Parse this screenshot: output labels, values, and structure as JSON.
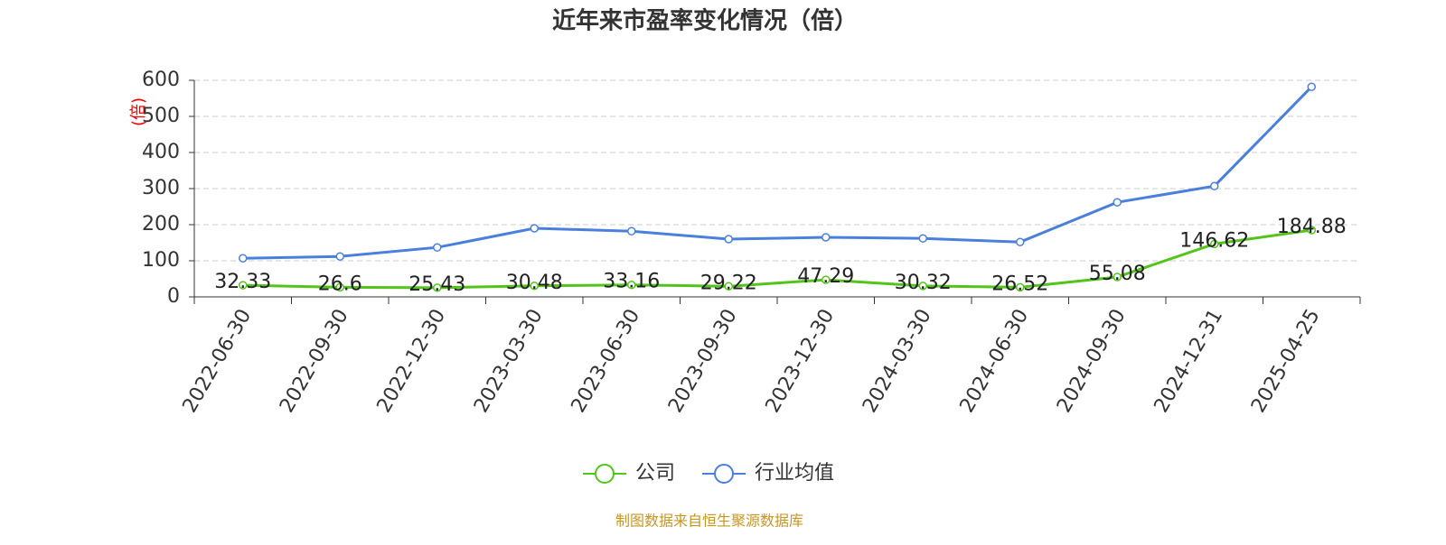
{
  "chart_data": {
    "type": "line",
    "title": "近年来市盈率变化情况（倍）",
    "y_label": "(倍)",
    "source": "制图数据来自恒生聚源数据库",
    "categories": [
      "2022-06-30",
      "2022-09-30",
      "2022-12-30",
      "2023-03-30",
      "2023-06-30",
      "2023-09-30",
      "2023-12-30",
      "2024-03-30",
      "2024-06-30",
      "2024-09-30",
      "2024-12-31",
      "2025-04-25"
    ],
    "series": [
      {
        "name": "公司",
        "color": "#52c41a",
        "values": [
          32.33,
          26.6,
          25.43,
          30.48,
          33.16,
          29.22,
          47.29,
          30.32,
          26.52,
          55.08,
          146.62,
          184.88
        ]
      },
      {
        "name": "行业均值",
        "color": "#4a7fdc",
        "values": [
          107,
          112,
          137,
          190,
          182,
          160,
          165,
          162,
          152,
          262,
          307,
          582
        ]
      }
    ],
    "ylim": [
      0,
      600
    ],
    "yticks": [
      0,
      100,
      200,
      300,
      400,
      500,
      600
    ],
    "grid": true
  }
}
